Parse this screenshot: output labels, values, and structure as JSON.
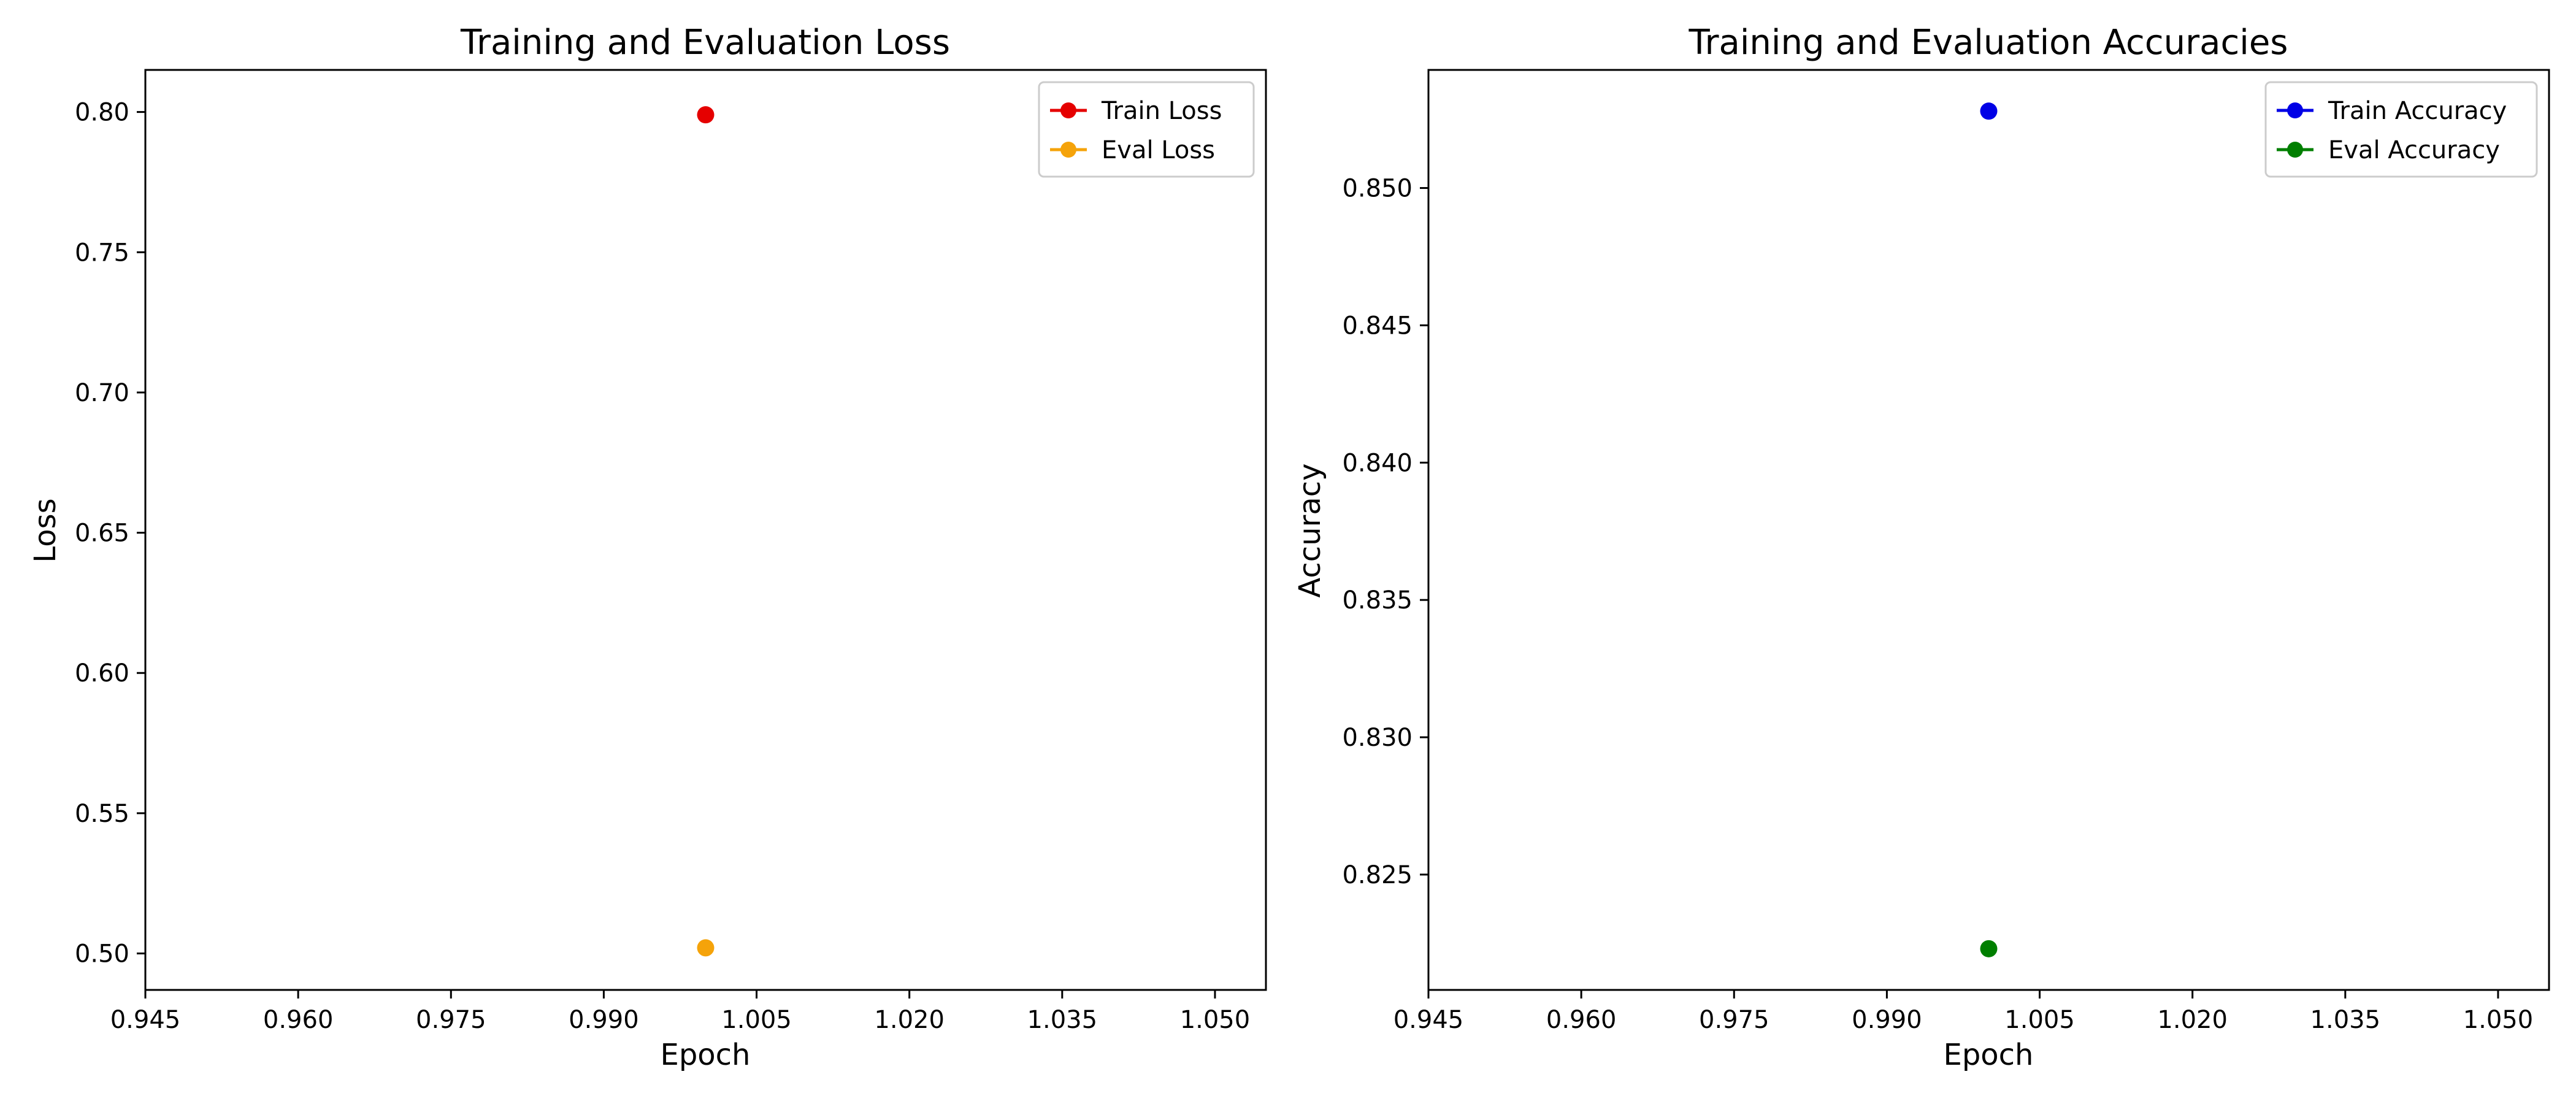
{
  "chart_data": [
    {
      "type": "scatter",
      "title": "Training and Evaluation Loss",
      "xlabel": "Epoch",
      "ylabel": "Loss",
      "xlim": [
        0.945,
        1.055
      ],
      "ylim": [
        0.487,
        0.815
      ],
      "xticks": [
        0.945,
        0.96,
        0.975,
        0.99,
        1.005,
        1.02,
        1.035,
        1.05
      ],
      "xtick_labels": [
        "0.945",
        "0.960",
        "0.975",
        "0.990",
        "1.005",
        "1.020",
        "1.035",
        "1.050"
      ],
      "yticks": [
        0.5,
        0.55,
        0.6,
        0.65,
        0.7,
        0.75,
        0.8
      ],
      "ytick_labels": [
        "0.50",
        "0.55",
        "0.60",
        "0.65",
        "0.70",
        "0.75",
        "0.80"
      ],
      "grid": false,
      "legend_position": "top-right",
      "series": [
        {
          "name": "Train Loss",
          "color": "#e50000",
          "x": [
            1.0
          ],
          "y": [
            0.799
          ]
        },
        {
          "name": "Eval Loss",
          "color": "#f5a30a",
          "x": [
            1.0
          ],
          "y": [
            0.502
          ]
        }
      ]
    },
    {
      "type": "scatter",
      "title": "Training and Evaluation Accuracies",
      "xlabel": "Epoch",
      "ylabel": "Accuracy",
      "xlim": [
        0.945,
        1.055
      ],
      "ylim": [
        0.8208,
        0.8543
      ],
      "xticks": [
        0.945,
        0.96,
        0.975,
        0.99,
        1.005,
        1.02,
        1.035,
        1.05
      ],
      "xtick_labels": [
        "0.945",
        "0.960",
        "0.975",
        "0.990",
        "1.005",
        "1.020",
        "1.035",
        "1.050"
      ],
      "yticks": [
        0.825,
        0.83,
        0.835,
        0.84,
        0.845,
        0.85
      ],
      "ytick_labels": [
        "0.825",
        "0.830",
        "0.835",
        "0.840",
        "0.845",
        "0.850"
      ],
      "grid": false,
      "legend_position": "top-right",
      "series": [
        {
          "name": "Train Accuracy",
          "color": "#0000e6",
          "x": [
            1.0
          ],
          "y": [
            0.8528
          ]
        },
        {
          "name": "Eval Accuracy",
          "color": "#007f00",
          "x": [
            1.0
          ],
          "y": [
            0.8223
          ]
        }
      ]
    }
  ]
}
